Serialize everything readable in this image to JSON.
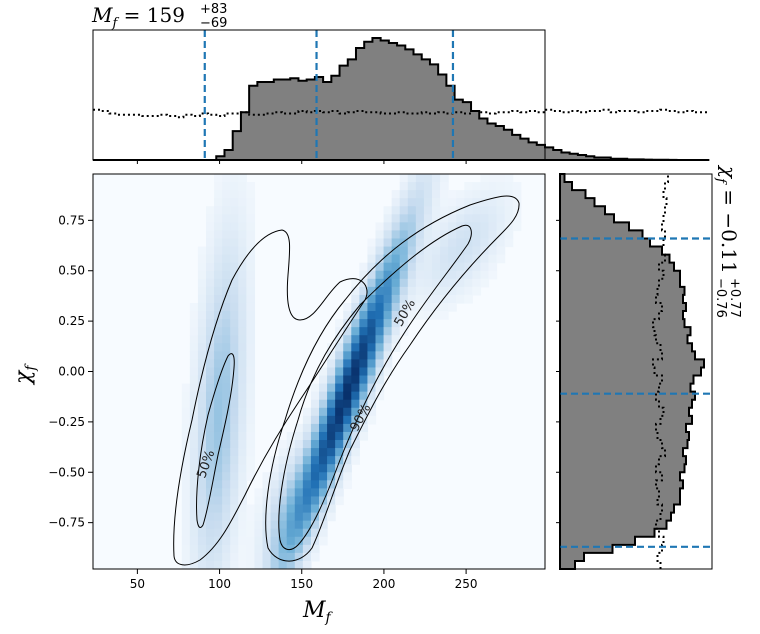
{
  "chart_data": {
    "type": "heatmap",
    "title_top": {
      "symbol": "M",
      "sub": "f",
      "eq": " = ",
      "value": "159",
      "plus": "+83",
      "minus": "−69"
    },
    "title_right": {
      "symbol": "χ",
      "sub": "f",
      "eq": " = ",
      "value": "−0.11",
      "plus": "+0.77",
      "minus": "−0.76"
    },
    "xlabel": {
      "symbol": "M",
      "sub": "f"
    },
    "ylabel": {
      "symbol": "χ",
      "sub": "f"
    },
    "xlim": [
      23,
      298
    ],
    "ylim": [
      -0.98,
      0.98
    ],
    "xticks": [
      50,
      100,
      150,
      200,
      250
    ],
    "yticks": [
      -0.75,
      -0.5,
      -0.25,
      0.0,
      0.25,
      0.5,
      0.75
    ],
    "ytick_labels": [
      "−0.75",
      "−0.50",
      "−0.25",
      "0.00",
      "0.25",
      "0.50",
      "0.75"
    ],
    "contour_labels": [
      {
        "text": "50%",
        "x": 92,
        "y": -0.46
      },
      {
        "text": "50%",
        "x": 213,
        "y": 0.29
      },
      {
        "text": "90%",
        "x": 186,
        "y": -0.23
      }
    ],
    "mass_quantiles": [
      91,
      159,
      242
    ],
    "spin_quantiles": [
      -0.87,
      -0.11,
      0.66
    ],
    "mass_hist": {
      "bin_edges_start": 23,
      "bin_width": 5,
      "values": [
        0,
        0,
        0,
        0,
        0,
        0,
        0,
        0,
        0,
        0,
        0,
        0,
        0,
        0,
        0,
        0.03,
        0.08,
        0.23,
        0.38,
        0.59,
        0.62,
        0.62,
        0.64,
        0.64,
        0.65,
        0.63,
        0.64,
        0.66,
        0.62,
        0.67,
        0.75,
        0.8,
        0.89,
        0.94,
        0.97,
        0.95,
        0.93,
        0.91,
        0.88,
        0.84,
        0.8,
        0.76,
        0.68,
        0.59,
        0.48,
        0.46,
        0.39,
        0.33,
        0.29,
        0.27,
        0.24,
        0.2,
        0.17,
        0.14,
        0.12,
        0.1,
        0.08,
        0.06,
        0.05,
        0.04,
        0.03,
        0.02,
        0.02,
        0.01,
        0.01,
        0.005,
        0.005,
        0.003,
        0.002,
        0.002,
        0.001,
        0,
        0,
        0,
        0
      ],
      "prior": [
        0.4,
        0.39,
        0.37,
        0.36,
        0.36,
        0.36,
        0.35,
        0.35,
        0.36,
        0.35,
        0.34,
        0.36,
        0.35,
        0.37,
        0.36,
        0.35,
        0.37,
        0.37,
        0.38,
        0.36,
        0.36,
        0.37,
        0.38,
        0.37,
        0.37,
        0.39,
        0.38,
        0.39,
        0.38,
        0.39,
        0.37,
        0.38,
        0.39,
        0.38,
        0.38,
        0.37,
        0.37,
        0.38,
        0.37,
        0.37,
        0.38,
        0.37,
        0.38,
        0.37,
        0.38,
        0.37,
        0.39,
        0.38,
        0.37,
        0.38,
        0.38,
        0.39,
        0.38,
        0.39,
        0.38,
        0.4,
        0.39,
        0.38,
        0.39,
        0.38,
        0.39,
        0.39,
        0.4,
        0.38,
        0.39,
        0.39,
        0.38,
        0.39,
        0.39,
        0.4,
        0.39,
        0.38,
        0.39,
        0.38,
        0.38
      ]
    },
    "spin_hist": {
      "bin_edges_start": -0.98,
      "bin_width": 0.04,
      "values": [
        0.1,
        0.16,
        0.35,
        0.5,
        0.63,
        0.71,
        0.74,
        0.76,
        0.8,
        0.8,
        0.82,
        0.8,
        0.83,
        0.84,
        0.82,
        0.85,
        0.86,
        0.84,
        0.88,
        0.86,
        0.88,
        0.9,
        0.87,
        0.89,
        0.94,
        0.96,
        0.9,
        0.88,
        0.85,
        0.87,
        0.83,
        0.82,
        0.84,
        0.82,
        0.83,
        0.8,
        0.8,
        0.76,
        0.73,
        0.68,
        0.6,
        0.55,
        0.46,
        0.36,
        0.3,
        0.23,
        0.17,
        0.08,
        0.03
      ],
      "prior": [
        0.67,
        0.65,
        0.68,
        0.69,
        0.66,
        0.64,
        0.67,
        0.68,
        0.65,
        0.66,
        0.64,
        0.68,
        0.64,
        0.66,
        0.7,
        0.68,
        0.65,
        0.64,
        0.67,
        0.69,
        0.66,
        0.64,
        0.66,
        0.68,
        0.63,
        0.62,
        0.68,
        0.67,
        0.64,
        0.63,
        0.62,
        0.66,
        0.68,
        0.64,
        0.65,
        0.66,
        0.69,
        0.66,
        0.7,
        0.68,
        0.69,
        0.7,
        0.68,
        0.69,
        0.7,
        0.71,
        0.69,
        0.7,
        0.72
      ]
    },
    "density_components": [
      {
        "mx": 178,
        "my": -0.1,
        "sx": 24,
        "sy": 0.52,
        "rho": 0.95,
        "w": 1.0
      },
      {
        "mx": 100,
        "my": -0.2,
        "sx": 10,
        "sy": 0.55,
        "rho": 0.4,
        "w": 0.32
      },
      {
        "mx": 248,
        "my": 0.62,
        "sx": 18,
        "sy": 0.18,
        "rho": 0.6,
        "w": 0.15
      },
      {
        "mx": 140,
        "my": -0.7,
        "sx": 10,
        "sy": 0.2,
        "rho": 0.5,
        "w": 0.2
      }
    ]
  }
}
